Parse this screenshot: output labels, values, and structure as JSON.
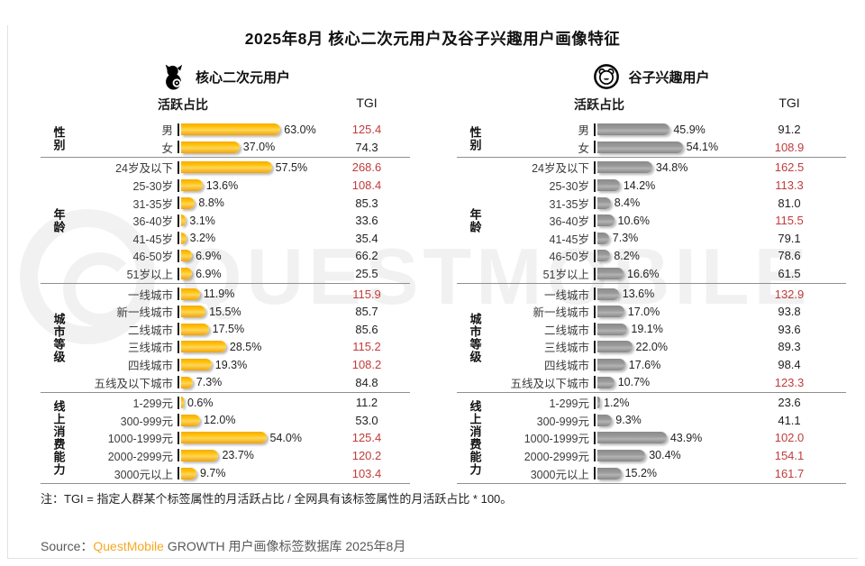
{
  "page": {
    "title": "2025年8月 核心二次元用户及谷子兴趣用户画像特征",
    "note": "注：TGI = 指定人群某个标签属性的月活跃占比 / 全网具有该标签属性的月活跃占比 * 100。",
    "source": {
      "prefix": "Source：",
      "brand": "QuestMobile",
      "suffix": " GROWTH 用户画像标签数据库 2025年8月"
    },
    "watermark": "QUESTMOBILE"
  },
  "colors": {
    "bar_yellow": "#FFC30B",
    "bar_gray": "#9A9A9A",
    "tgi_high_red": "#C23B3B",
    "brand_orange": "#F7A823",
    "separator_gray": "#909090"
  },
  "chart_data": [
    {
      "type": "bar",
      "legend": "核心二次元用户",
      "legend_icon": "cat-icon",
      "value_header": "活跃占比",
      "tgi_header": "TGI",
      "bar_color": "#FFC30B",
      "value_unit": "%",
      "xlim": [
        0,
        100
      ],
      "tgi_red_rule": "tgi > 100",
      "groups": [
        {
          "name": "性别",
          "rows": [
            {
              "label": "男",
              "pct": 63.0,
              "tgi": 125.4
            },
            {
              "label": "女",
              "pct": 37.0,
              "tgi": 74.3
            }
          ]
        },
        {
          "name": "年龄",
          "rows": [
            {
              "label": "24岁及以下",
              "pct": 57.5,
              "tgi": 268.6
            },
            {
              "label": "25-30岁",
              "pct": 13.6,
              "tgi": 108.4
            },
            {
              "label": "31-35岁",
              "pct": 8.8,
              "tgi": 85.3
            },
            {
              "label": "36-40岁",
              "pct": 3.1,
              "tgi": 33.6
            },
            {
              "label": "41-45岁",
              "pct": 3.2,
              "tgi": 35.4
            },
            {
              "label": "46-50岁",
              "pct": 6.9,
              "tgi": 66.2
            },
            {
              "label": "51岁以上",
              "pct": 6.9,
              "tgi": 25.5
            }
          ]
        },
        {
          "name": "城市等级",
          "rows": [
            {
              "label": "一线城市",
              "pct": 11.9,
              "tgi": 115.9
            },
            {
              "label": "新一线城市",
              "pct": 15.5,
              "tgi": 85.7
            },
            {
              "label": "二线城市",
              "pct": 17.5,
              "tgi": 85.6
            },
            {
              "label": "三线城市",
              "pct": 28.5,
              "tgi": 115.2
            },
            {
              "label": "四线城市",
              "pct": 19.3,
              "tgi": 108.2
            },
            {
              "label": "五线及以下城市",
              "pct": 7.3,
              "tgi": 84.8
            }
          ]
        },
        {
          "name": "线上消费能力",
          "rows": [
            {
              "label": "1-299元",
              "pct": 0.6,
              "tgi": 11.2
            },
            {
              "label": "300-999元",
              "pct": 12.0,
              "tgi": 53.0
            },
            {
              "label": "1000-1999元",
              "pct": 54.0,
              "tgi": 125.4
            },
            {
              "label": "2000-2999元",
              "pct": 23.7,
              "tgi": 120.2
            },
            {
              "label": "3000元以上",
              "pct": 9.7,
              "tgi": 103.4
            }
          ]
        }
      ]
    },
    {
      "type": "bar",
      "legend": "谷子兴趣用户",
      "legend_icon": "bear-icon",
      "value_header": "活跃占比",
      "tgi_header": "TGI",
      "bar_color": "#9A9A9A",
      "value_unit": "%",
      "xlim": [
        0,
        100
      ],
      "tgi_red_rule": "tgi > 100",
      "groups": [
        {
          "name": "性别",
          "rows": [
            {
              "label": "男",
              "pct": 45.9,
              "tgi": 91.2
            },
            {
              "label": "女",
              "pct": 54.1,
              "tgi": 108.9
            }
          ]
        },
        {
          "name": "年龄",
          "rows": [
            {
              "label": "24岁及以下",
              "pct": 34.8,
              "tgi": 162.5
            },
            {
              "label": "25-30岁",
              "pct": 14.2,
              "tgi": 113.3
            },
            {
              "label": "31-35岁",
              "pct": 8.4,
              "tgi": 81.0
            },
            {
              "label": "36-40岁",
              "pct": 10.6,
              "tgi": 115.5
            },
            {
              "label": "41-45岁",
              "pct": 7.3,
              "tgi": 79.1
            },
            {
              "label": "46-50岁",
              "pct": 8.2,
              "tgi": 78.6
            },
            {
              "label": "51岁以上",
              "pct": 16.6,
              "tgi": 61.5
            }
          ]
        },
        {
          "name": "城市等级",
          "rows": [
            {
              "label": "一线城市",
              "pct": 13.6,
              "tgi": 132.9
            },
            {
              "label": "新一线城市",
              "pct": 17.0,
              "tgi": 93.8
            },
            {
              "label": "二线城市",
              "pct": 19.1,
              "tgi": 93.6
            },
            {
              "label": "三线城市",
              "pct": 22.0,
              "tgi": 89.3
            },
            {
              "label": "四线城市",
              "pct": 17.6,
              "tgi": 98.4
            },
            {
              "label": "五线及以下城市",
              "pct": 10.7,
              "tgi": 123.3
            }
          ]
        },
        {
          "name": "线上消费能力",
          "rows": [
            {
              "label": "1-299元",
              "pct": 1.2,
              "tgi": 23.6
            },
            {
              "label": "300-999元",
              "pct": 9.3,
              "tgi": 41.1
            },
            {
              "label": "1000-1999元",
              "pct": 43.9,
              "tgi": 102.0
            },
            {
              "label": "2000-2999元",
              "pct": 30.4,
              "tgi": 154.1
            },
            {
              "label": "3000元以上",
              "pct": 15.2,
              "tgi": 161.7
            }
          ]
        }
      ]
    }
  ]
}
